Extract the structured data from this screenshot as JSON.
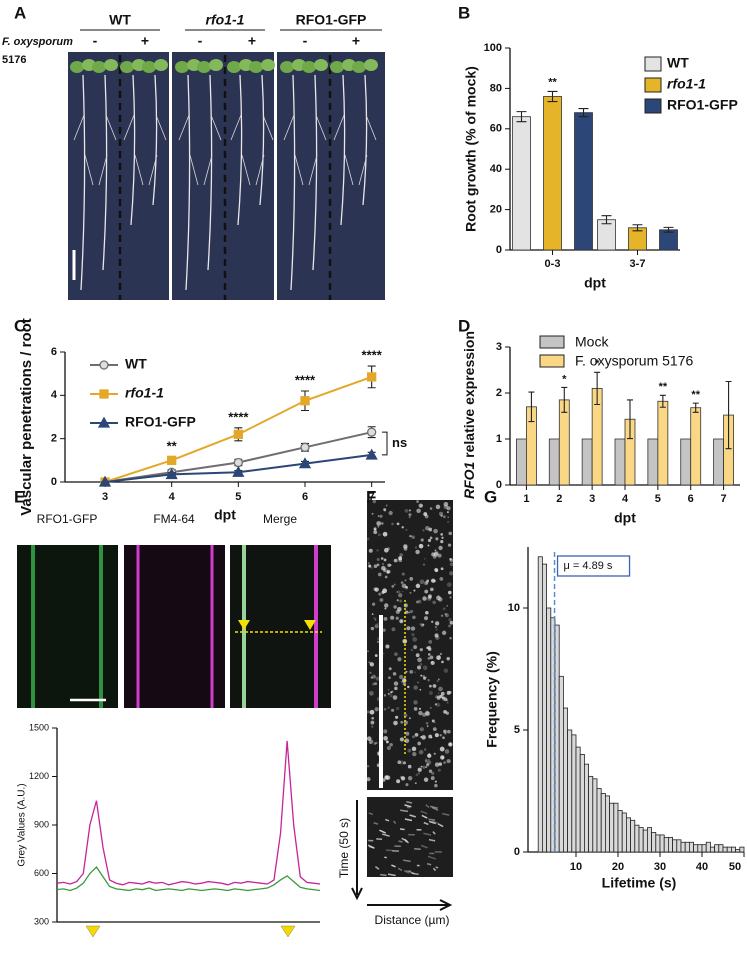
{
  "panel_labels": [
    "A",
    "B",
    "C",
    "D",
    "E",
    "F",
    "G"
  ],
  "panel_a": {
    "genotypes": [
      "WT",
      "rfo1-1",
      "RFO1-GFP"
    ],
    "treatment": "F. oxysporum",
    "strain": "5176",
    "mock": "-",
    "infected": "+"
  },
  "panel_e": {
    "channels": [
      "RFO1-GFP",
      "FM4-64",
      "Merge"
    ]
  },
  "panel_f": {
    "time_label": "Time (50 s)",
    "distance_label": "Distance (µm)"
  },
  "chart_data": [
    {
      "type": "bar",
      "categories": [
        "0-3",
        "3-7"
      ],
      "ylabel": "Root growth (% of mock)",
      "xlabel": "dpt",
      "ylim": [
        0,
        100
      ],
      "yticks": [
        0,
        20,
        40,
        60,
        80,
        100
      ],
      "grid": false,
      "legend": "upper-right",
      "series": [
        {
          "name": "WT",
          "color": "#e3e3e3",
          "values": [
            66,
            15
          ],
          "errors": [
            2.5,
            2
          ]
        },
        {
          "name": "rfo1-1",
          "color": "#e6b428",
          "values": [
            76,
            11
          ],
          "errors": [
            2.5,
            1.5
          ],
          "significance": [
            "**",
            null
          ]
        },
        {
          "name": "RFO1-GFP",
          "color": "#2c4677",
          "values": [
            68,
            10
          ],
          "errors": [
            2,
            1.2
          ]
        }
      ]
    },
    {
      "type": "line",
      "x": [
        3,
        4,
        5,
        6,
        7
      ],
      "xlim": [
        2.4,
        7.2
      ],
      "xticks": [
        3,
        4,
        5,
        6,
        7
      ],
      "ylabel": "Vascular  penetrations / root",
      "xlabel": "dpt",
      "ylim": [
        0,
        6
      ],
      "yticks": [
        0,
        2,
        4,
        6
      ],
      "grid": false,
      "legend": "upper-left",
      "significance": [
        null,
        "**",
        "****",
        "****",
        "****"
      ],
      "comparison_label": "ns",
      "series": [
        {
          "name": "WT",
          "color": "#6e6e6e",
          "values": [
            0,
            0.45,
            0.9,
            1.6,
            2.3
          ],
          "errors": [
            0,
            0.12,
            0.15,
            0.18,
            0.25
          ]
        },
        {
          "name": "rfo1-1",
          "color": "#e3a82a",
          "values": [
            0,
            1.0,
            2.2,
            3.75,
            4.85
          ],
          "errors": [
            0,
            0.15,
            0.3,
            0.45,
            0.5
          ]
        },
        {
          "name": "RFO1-GFP",
          "color": "#2c4677",
          "values": [
            0,
            0.35,
            0.45,
            0.85,
            1.25
          ],
          "errors": [
            0,
            0.08,
            0.08,
            0.1,
            0.12
          ]
        }
      ]
    },
    {
      "type": "bar",
      "categories": [
        "1",
        "2",
        "3",
        "4",
        "5",
        "6",
        "7"
      ],
      "ylabel_italic": "RFO1",
      "ylabel": " relative expression",
      "xlabel": "dpt",
      "ylim": [
        0,
        3
      ],
      "yticks": [
        0,
        1,
        2,
        3
      ],
      "grid": false,
      "legend": "upper-left",
      "significance": [
        null,
        "*",
        "*",
        null,
        "**",
        "**",
        null
      ],
      "series": [
        {
          "name": "Mock",
          "color": "#c4c4c4",
          "values": [
            1,
            1,
            1,
            1,
            1,
            1,
            1
          ]
        },
        {
          "name": "F. oxysporum 5176",
          "color": "#fad784",
          "values": [
            1.7,
            1.85,
            2.1,
            1.43,
            1.82,
            1.68,
            1.52
          ],
          "errors": [
            0.32,
            0.27,
            0.35,
            0.42,
            0.13,
            0.1,
            0.73
          ]
        }
      ]
    },
    {
      "type": "line",
      "x": [
        0,
        1,
        2,
        3,
        4,
        5,
        6,
        7,
        8,
        9,
        10,
        11,
        12,
        13,
        14,
        15,
        16,
        17,
        18,
        19,
        20,
        21,
        22,
        23,
        24,
        25,
        26,
        27,
        28,
        29,
        30,
        31,
        32,
        33,
        34,
        35,
        36,
        37,
        38,
        39,
        40
      ],
      "xlim": [
        0,
        40
      ],
      "ylabel": "Grey Values (A.U.)",
      "ylim": [
        300,
        1500
      ],
      "yticks": [
        300,
        600,
        900,
        1200,
        1500
      ],
      "grid": false,
      "series": [
        {
          "color": "#c4249c",
          "values": [
            540,
            545,
            535,
            550,
            600,
            900,
            1050,
            760,
            560,
            540,
            530,
            545,
            540,
            535,
            550,
            540,
            545,
            530,
            540,
            550,
            545,
            535,
            540,
            550,
            545,
            540,
            530,
            545,
            540,
            550,
            545,
            540,
            535,
            560,
            850,
            1420,
            900,
            580,
            545,
            540,
            535
          ]
        },
        {
          "color": "#3a9a3a",
          "values": [
            500,
            505,
            495,
            510,
            540,
            600,
            640,
            580,
            520,
            505,
            500,
            495,
            505,
            500,
            510,
            495,
            500,
            505,
            500,
            495,
            505,
            500,
            495,
            500,
            505,
            500,
            495,
            505,
            500,
            495,
            500,
            505,
            510,
            530,
            560,
            585,
            550,
            515,
            505,
            500,
            495
          ]
        }
      ]
    },
    {
      "type": "histogram",
      "bins": [
        1,
        2,
        3,
        4,
        5,
        6,
        7,
        8,
        9,
        10,
        11,
        12,
        13,
        14,
        15,
        16,
        17,
        18,
        19,
        20,
        21,
        22,
        23,
        24,
        25,
        26,
        27,
        28,
        29,
        30,
        31,
        32,
        33,
        34,
        35,
        36,
        37,
        38,
        39,
        40,
        41,
        42,
        43,
        44,
        45,
        46,
        47,
        48,
        49,
        50
      ],
      "values": [
        12.1,
        11.8,
        10.0,
        9.6,
        9.3,
        7.2,
        5.9,
        5.0,
        4.8,
        4.3,
        4.0,
        3.6,
        3.1,
        3.0,
        2.6,
        2.4,
        2.3,
        2.0,
        2.0,
        1.7,
        1.6,
        1.4,
        1.3,
        1.1,
        1.0,
        0.9,
        1.0,
        0.8,
        0.7,
        0.7,
        0.6,
        0.6,
        0.5,
        0.5,
        0.4,
        0.4,
        0.4,
        0.3,
        0.3,
        0.3,
        0.4,
        0.2,
        0.3,
        0.3,
        0.2,
        0.2,
        0.2,
        0.1,
        0.2
      ],
      "color": "#d9d9d9",
      "xlim": [
        0,
        50
      ],
      "xticks": [
        10,
        20,
        30,
        40,
        50
      ],
      "ylim": [
        0,
        12.5
      ],
      "yticks": [
        0,
        5,
        10
      ],
      "xlabel": "Lifetime (s)",
      "ylabel": "Frequency (%)",
      "grid": false,
      "mean": {
        "value": 4.89,
        "label": "μ = 4.89 s"
      }
    }
  ]
}
